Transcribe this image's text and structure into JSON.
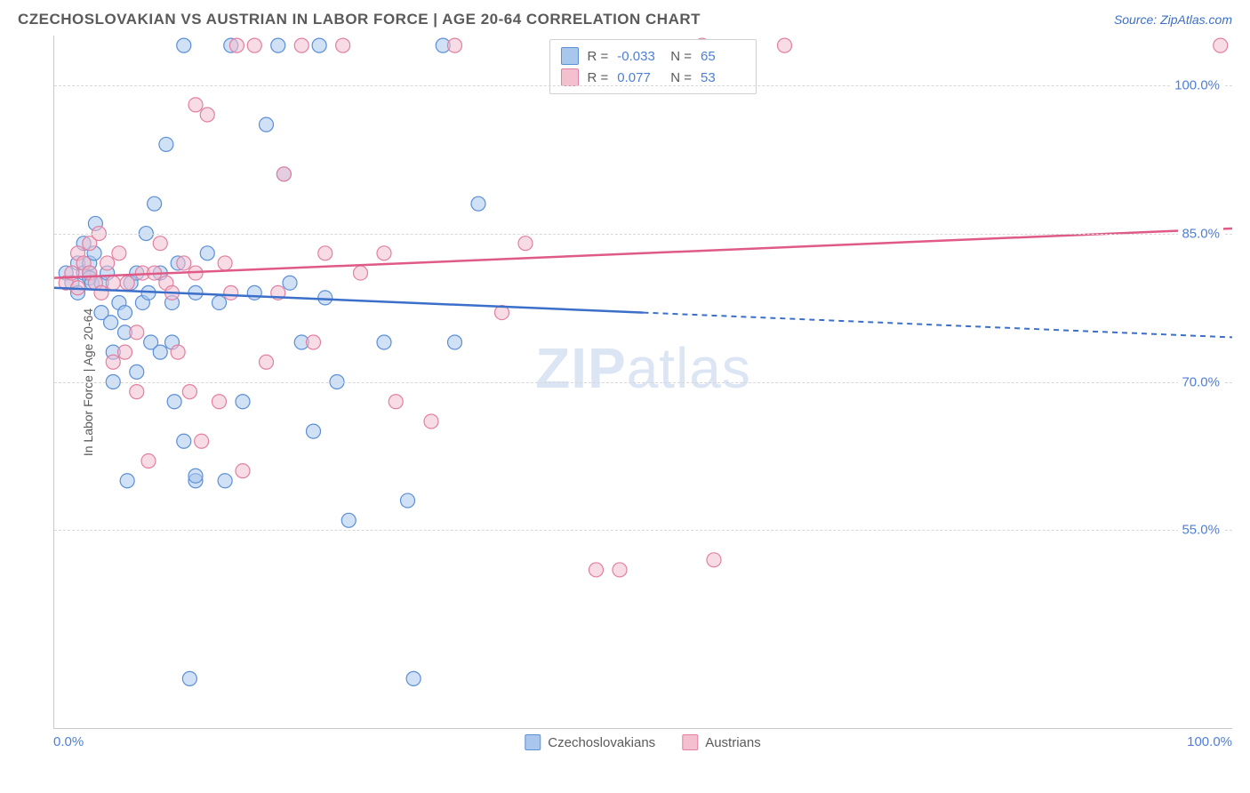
{
  "header": {
    "title": "CZECHOSLOVAKIAN VS AUSTRIAN IN LABOR FORCE | AGE 20-64 CORRELATION CHART",
    "source": "Source: ZipAtlas.com"
  },
  "chart": {
    "type": "scatter",
    "y_axis_label": "In Labor Force | Age 20-64",
    "x_range": [
      0,
      100
    ],
    "y_range": [
      35,
      105
    ],
    "y_ticks": [
      55.0,
      70.0,
      85.0,
      100.0
    ],
    "y_tick_labels": [
      "55.0%",
      "70.0%",
      "85.0%",
      "100.0%"
    ],
    "x_tick_labels": {
      "left": "0.0%",
      "right": "100.0%"
    },
    "background_color": "#ffffff",
    "grid_color": "#d8d8d8",
    "marker_radius": 8,
    "marker_opacity": 0.55,
    "marker_stroke_width": 1.2,
    "series": [
      {
        "name": "Czechoslovakians",
        "color_fill": "#a9c6ec",
        "color_stroke": "#5b8fd6",
        "r_value": "-0.033",
        "n_value": "65",
        "trend": {
          "x1": 0,
          "y1": 79.5,
          "x2": 50,
          "y2": 77.0,
          "x_solid_end": 50,
          "x_dash_end": 100,
          "y_dash_end": 74.5,
          "color": "#3b6fc9",
          "width": 2.5
        },
        "points": [
          [
            1,
            81
          ],
          [
            1.5,
            80
          ],
          [
            2,
            82
          ],
          [
            2,
            79
          ],
          [
            2.5,
            81
          ],
          [
            2.5,
            84
          ],
          [
            3,
            81
          ],
          [
            3,
            80.5
          ],
          [
            3,
            82
          ],
          [
            3.2,
            80
          ],
          [
            3.4,
            83
          ],
          [
            3.5,
            86
          ],
          [
            4,
            80
          ],
          [
            4,
            77
          ],
          [
            4.5,
            81
          ],
          [
            4.8,
            76
          ],
          [
            5,
            73
          ],
          [
            5,
            70
          ],
          [
            5.5,
            78
          ],
          [
            6,
            77
          ],
          [
            6,
            75
          ],
          [
            6.2,
            60
          ],
          [
            6.5,
            80
          ],
          [
            7,
            71
          ],
          [
            7,
            81
          ],
          [
            7.5,
            78
          ],
          [
            7.8,
            85
          ],
          [
            8,
            79
          ],
          [
            8.2,
            74
          ],
          [
            8.5,
            88
          ],
          [
            9,
            73
          ],
          [
            9,
            81
          ],
          [
            9.5,
            94
          ],
          [
            10,
            78
          ],
          [
            10,
            74
          ],
          [
            10.2,
            68
          ],
          [
            10.5,
            82
          ],
          [
            11,
            104
          ],
          [
            11,
            64
          ],
          [
            11.5,
            40
          ],
          [
            12,
            79
          ],
          [
            12,
            60
          ],
          [
            12,
            60.5
          ],
          [
            13,
            83
          ],
          [
            14,
            78
          ],
          [
            14.5,
            60
          ],
          [
            15,
            104
          ],
          [
            16,
            68
          ],
          [
            17,
            79
          ],
          [
            18,
            96
          ],
          [
            19,
            104
          ],
          [
            19.5,
            91
          ],
          [
            20,
            80
          ],
          [
            21,
            74
          ],
          [
            22,
            65
          ],
          [
            22.5,
            104
          ],
          [
            23,
            78.5
          ],
          [
            24,
            70
          ],
          [
            25,
            56
          ],
          [
            28,
            74
          ],
          [
            30,
            58
          ],
          [
            30.5,
            40
          ],
          [
            33,
            104
          ],
          [
            34,
            74
          ],
          [
            36,
            88
          ]
        ]
      },
      {
        "name": "Austrians",
        "color_fill": "#f3c0cf",
        "color_stroke": "#e37fa0",
        "r_value": "0.077",
        "n_value": "53",
        "trend": {
          "x1": 0,
          "y1": 80.5,
          "x2": 100,
          "y2": 85.5,
          "x_solid_end": 100,
          "x_dash_end": 100,
          "y_dash_end": 85.5,
          "color": "#e05a87",
          "width": 2.5
        },
        "points": [
          [
            1,
            80
          ],
          [
            1.5,
            81
          ],
          [
            2,
            83
          ],
          [
            2,
            79.5
          ],
          [
            2.5,
            82
          ],
          [
            3,
            81
          ],
          [
            3,
            84
          ],
          [
            3.5,
            80
          ],
          [
            3.8,
            85
          ],
          [
            4,
            79
          ],
          [
            4.5,
            82
          ],
          [
            5,
            72
          ],
          [
            5,
            80
          ],
          [
            5.5,
            83
          ],
          [
            6,
            73
          ],
          [
            6.2,
            80
          ],
          [
            7,
            75
          ],
          [
            7,
            69
          ],
          [
            7.5,
            81
          ],
          [
            8,
            62
          ],
          [
            8.5,
            81
          ],
          [
            9,
            84
          ],
          [
            9.5,
            80
          ],
          [
            10,
            79
          ],
          [
            10.5,
            73
          ],
          [
            11,
            82
          ],
          [
            11.5,
            69
          ],
          [
            12,
            81
          ],
          [
            12,
            98
          ],
          [
            12.5,
            64
          ],
          [
            13,
            97
          ],
          [
            14,
            68
          ],
          [
            14.5,
            82
          ],
          [
            15,
            79
          ],
          [
            15.5,
            104
          ],
          [
            16,
            61
          ],
          [
            17,
            104
          ],
          [
            18,
            72
          ],
          [
            19,
            79
          ],
          [
            19.5,
            91
          ],
          [
            21,
            104
          ],
          [
            22,
            74
          ],
          [
            23,
            83
          ],
          [
            24.5,
            104
          ],
          [
            26,
            81
          ],
          [
            28,
            83
          ],
          [
            29,
            68
          ],
          [
            32,
            66
          ],
          [
            34,
            104
          ],
          [
            38,
            77
          ],
          [
            40,
            84
          ],
          [
            46,
            51
          ],
          [
            48,
            51
          ],
          [
            55,
            104
          ],
          [
            62,
            104
          ],
          [
            99,
            104
          ],
          [
            56,
            52
          ]
        ]
      }
    ],
    "stats_box": {
      "r_label": "R =",
      "n_label": "N ="
    },
    "bottom_legend": [
      {
        "label": "Czechoslovakians",
        "fill": "#a9c6ec",
        "stroke": "#5b8fd6"
      },
      {
        "label": "Austrians",
        "fill": "#f3c0cf",
        "stroke": "#e37fa0"
      }
    ],
    "watermark": {
      "part1": "ZIP",
      "part2": "atlas"
    }
  }
}
